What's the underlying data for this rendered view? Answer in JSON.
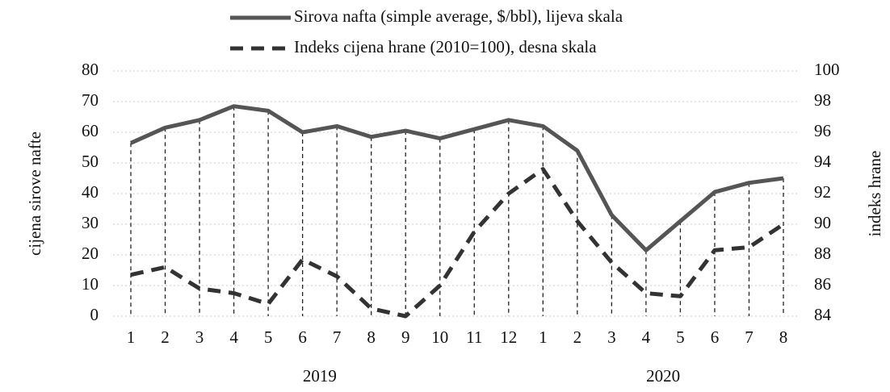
{
  "chart_data": {
    "type": "line",
    "categories": [
      "1",
      "2",
      "3",
      "4",
      "5",
      "6",
      "7",
      "8",
      "9",
      "10",
      "11",
      "12",
      "1",
      "2",
      "3",
      "4",
      "5",
      "6",
      "7",
      "8"
    ],
    "x_groups": [
      "2019",
      "2020"
    ],
    "ylabel": "cijena sirove nafte",
    "y2label": "indeks hrane",
    "ylim": [
      0,
      80
    ],
    "yticks": [
      0,
      10,
      20,
      30,
      40,
      50,
      60,
      70,
      80
    ],
    "y2lim": [
      84,
      100
    ],
    "y2ticks": [
      84,
      86,
      88,
      90,
      92,
      94,
      96,
      98,
      100
    ],
    "grid": true,
    "series": [
      {
        "name": "Sirova nafta (simple average, $/bbl), lijeva skala",
        "color": "#555555",
        "style": "solid",
        "values": [
          56.5,
          61.5,
          64,
          68.5,
          67,
          60,
          62,
          58.5,
          60.5,
          58,
          61,
          64,
          62,
          54,
          33,
          21.5,
          31,
          40.5,
          43.5,
          45
        ]
      },
      {
        "name": "Indeks cijena hrane (2010=100), desna skala",
        "color": "#333333",
        "style": "dashed",
        "axis": "y2",
        "values": [
          86.7,
          87.2,
          85.8,
          85.5,
          84.8,
          87.7,
          86.6,
          84.5,
          84.0,
          86.0,
          89.5,
          92.0,
          93.6,
          90.2,
          87.5,
          85.5,
          85.3,
          88.3,
          88.5,
          90.0
        ]
      }
    ]
  }
}
